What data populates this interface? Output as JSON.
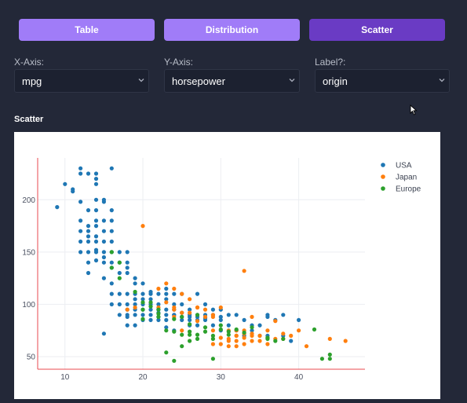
{
  "tabs": [
    {
      "label": "Table"
    },
    {
      "label": "Distribution"
    },
    {
      "label": "Scatter"
    }
  ],
  "controls": {
    "x_axis": {
      "label": "X-Axis:",
      "value": "mpg"
    },
    "y_axis": {
      "label": "Y-Axis:",
      "value": "horsepower"
    },
    "label": {
      "label": "Label?:",
      "value": "origin"
    }
  },
  "section": {
    "title": "Scatter"
  },
  "colors": {
    "USA": "#1f77b4",
    "Japan": "#ff7f0e",
    "Europe": "#2ca02c",
    "accent": "#a07cf8",
    "active_tab": "#6a3bc4"
  },
  "chart_data": {
    "type": "scatter",
    "title": "",
    "xlabel": "",
    "ylabel": "",
    "xlim": [
      6.5,
      48.5
    ],
    "ylim": [
      38,
      240
    ],
    "x_ticks": [
      10,
      20,
      30,
      40
    ],
    "y_ticks": [
      50,
      100,
      150,
      200
    ],
    "grid": true,
    "legend": "top-right",
    "series": [
      {
        "name": "USA",
        "points": [
          [
            9,
            193
          ],
          [
            10,
            215
          ],
          [
            11,
            210
          ],
          [
            11,
            208
          ],
          [
            12,
            225
          ],
          [
            13,
            225
          ],
          [
            14,
            225
          ],
          [
            14,
            220
          ],
          [
            14,
            215
          ],
          [
            16,
            230
          ],
          [
            12,
            198
          ],
          [
            13,
            190
          ],
          [
            13,
            170
          ],
          [
            13,
            165
          ],
          [
            13,
            160
          ],
          [
            13,
            150
          ],
          [
            13,
            140
          ],
          [
            14,
            200
          ],
          [
            14,
            190
          ],
          [
            14,
            180
          ],
          [
            14,
            175
          ],
          [
            14,
            165
          ],
          [
            14,
            160
          ],
          [
            14,
            152
          ],
          [
            14,
            150
          ],
          [
            14,
            142
          ],
          [
            15,
            198
          ],
          [
            15,
            180
          ],
          [
            15,
            170
          ],
          [
            15,
            160
          ],
          [
            15,
            150
          ],
          [
            15,
            145
          ],
          [
            15,
            140
          ],
          [
            16,
            190
          ],
          [
            16,
            180
          ],
          [
            16,
            170
          ],
          [
            16,
            150
          ],
          [
            16,
            140
          ],
          [
            16,
            135
          ],
          [
            16,
            120
          ],
          [
            17,
            150
          ],
          [
            17,
            140
          ],
          [
            17,
            130
          ],
          [
            18,
            150
          ],
          [
            18,
            140
          ],
          [
            18,
            135
          ],
          [
            18,
            130
          ],
          [
            19,
            125
          ],
          [
            19,
            120
          ],
          [
            12,
            180
          ],
          [
            12,
            170
          ],
          [
            12,
            160
          ],
          [
            12,
            150
          ],
          [
            13,
            130
          ],
          [
            15,
            125
          ],
          [
            16,
            110
          ],
          [
            17,
            110
          ],
          [
            18,
            110
          ],
          [
            18,
            100
          ],
          [
            18,
            95
          ],
          [
            19,
            110
          ],
          [
            19,
            100
          ],
          [
            19,
            90
          ],
          [
            20,
            110
          ],
          [
            20,
            100
          ],
          [
            20,
            95
          ],
          [
            20,
            90
          ],
          [
            20,
            85
          ],
          [
            21,
            110
          ],
          [
            21,
            105
          ],
          [
            21,
            95
          ],
          [
            21,
            90
          ],
          [
            21,
            85
          ],
          [
            22,
            100
          ],
          [
            22,
            95
          ],
          [
            22,
            88
          ],
          [
            22,
            85
          ],
          [
            23,
            105
          ],
          [
            23,
            95
          ],
          [
            23,
            90
          ],
          [
            23,
            85
          ],
          [
            24,
            110
          ],
          [
            24,
            100
          ],
          [
            24,
            90
          ],
          [
            25,
            100
          ],
          [
            25,
            88
          ],
          [
            25,
            85
          ],
          [
            26,
            95
          ],
          [
            26,
            90
          ],
          [
            26,
            85
          ],
          [
            27,
            90
          ],
          [
            27,
            88
          ],
          [
            27,
            85
          ],
          [
            28,
            90
          ],
          [
            28,
            85
          ],
          [
            29,
            90
          ],
          [
            29,
            80
          ],
          [
            30,
            85
          ],
          [
            30,
            75
          ],
          [
            31,
            80
          ],
          [
            32,
            90
          ],
          [
            33,
            85
          ],
          [
            34,
            80
          ],
          [
            34,
            75
          ],
          [
            36,
            90
          ],
          [
            36,
            70
          ],
          [
            37,
            85
          ],
          [
            38,
            70
          ],
          [
            39,
            65
          ],
          [
            18,
            80
          ],
          [
            19,
            80
          ],
          [
            22,
            110
          ],
          [
            23,
            110
          ],
          [
            24,
            75
          ],
          [
            26,
            80
          ],
          [
            15,
            72
          ],
          [
            17,
            100
          ],
          [
            18,
            88
          ],
          [
            18,
            90
          ],
          [
            20,
            120
          ],
          [
            21,
            112
          ],
          [
            21,
            100
          ],
          [
            23,
            115
          ],
          [
            24,
            95
          ],
          [
            25,
            110
          ],
          [
            27,
            110
          ],
          [
            28,
            100
          ],
          [
            29,
            95
          ],
          [
            30,
            88
          ],
          [
            32,
            75
          ],
          [
            33,
            70
          ],
          [
            35,
            80
          ],
          [
            38,
            90
          ],
          [
            40,
            85
          ],
          [
            16,
            100
          ],
          [
            17,
            90
          ],
          [
            19,
            95
          ],
          [
            20,
            105
          ],
          [
            22,
            92
          ],
          [
            24,
            90
          ],
          [
            25,
            92
          ],
          [
            26,
            88
          ],
          [
            28,
            87
          ],
          [
            31,
            90
          ],
          [
            12,
            230
          ],
          [
            15,
            200
          ],
          [
            16,
            160
          ],
          [
            13,
            175
          ],
          [
            19,
            105
          ],
          [
            23,
            78
          ],
          [
            27,
            80
          ],
          [
            30,
            95
          ],
          [
            35,
            70
          ],
          [
            36,
            88
          ]
        ]
      },
      {
        "name": "Japan",
        "points": [
          [
            18,
            95
          ],
          [
            19,
            97
          ],
          [
            20,
            175
          ],
          [
            22,
            115
          ],
          [
            23,
            102
          ],
          [
            24,
            97
          ],
          [
            24,
            95
          ],
          [
            25,
            110
          ],
          [
            25,
            92
          ],
          [
            26,
            105
          ],
          [
            27,
            97
          ],
          [
            28,
            95
          ],
          [
            29,
            90
          ],
          [
            30,
            97
          ],
          [
            31,
            67
          ],
          [
            31,
            65
          ],
          [
            32,
            70
          ],
          [
            32,
            75
          ],
          [
            32,
            60
          ],
          [
            33,
            68
          ],
          [
            33,
            75
          ],
          [
            33,
            132
          ],
          [
            34,
            65
          ],
          [
            34,
            70
          ],
          [
            34,
            88
          ],
          [
            35,
            65
          ],
          [
            35,
            70
          ],
          [
            36,
            68
          ],
          [
            36,
            75
          ],
          [
            37,
            67
          ],
          [
            38,
            67
          ],
          [
            38,
            72
          ],
          [
            39,
            70
          ],
          [
            40,
            75
          ],
          [
            41,
            60
          ],
          [
            44,
            67
          ],
          [
            46,
            65
          ],
          [
            24,
            88
          ],
          [
            26,
            92
          ],
          [
            27,
            84
          ],
          [
            29,
            75
          ],
          [
            30,
            68
          ],
          [
            31,
            75
          ],
          [
            32,
            65
          ],
          [
            33,
            72
          ],
          [
            22,
            97
          ],
          [
            23,
            120
          ],
          [
            25,
            75
          ],
          [
            27,
            97
          ],
          [
            28,
            88
          ],
          [
            29,
            88
          ],
          [
            30,
            62
          ],
          [
            31,
            60
          ],
          [
            32,
            70
          ],
          [
            33,
            62
          ],
          [
            34,
            72
          ],
          [
            36,
            62
          ],
          [
            37,
            84
          ],
          [
            29,
            62
          ],
          [
            24,
            115
          ]
        ]
      },
      {
        "name": "Europe",
        "points": [
          [
            16,
            150
          ],
          [
            16,
            135
          ],
          [
            17,
            125
          ],
          [
            19,
            112
          ],
          [
            20,
            102
          ],
          [
            20,
            86
          ],
          [
            21,
            102
          ],
          [
            22,
            88
          ],
          [
            23,
            54
          ],
          [
            23,
            75
          ],
          [
            24,
            74
          ],
          [
            24,
            46
          ],
          [
            24,
            86
          ],
          [
            25,
            88
          ],
          [
            25,
            71
          ],
          [
            26,
            65
          ],
          [
            26,
            74
          ],
          [
            26,
            81
          ],
          [
            27,
            90
          ],
          [
            27,
            71
          ],
          [
            27,
            67
          ],
          [
            28,
            78
          ],
          [
            29,
            70
          ],
          [
            29,
            67
          ],
          [
            30,
            80
          ],
          [
            30,
            76
          ],
          [
            31,
            74
          ],
          [
            32,
            76
          ],
          [
            34,
            78
          ],
          [
            36,
            68
          ],
          [
            36,
            67
          ],
          [
            37,
            65
          ],
          [
            38,
            67
          ],
          [
            42,
            76
          ],
          [
            43,
            48
          ],
          [
            44,
            52
          ],
          [
            44,
            48
          ],
          [
            33,
            73
          ],
          [
            29,
            48
          ],
          [
            25,
            60
          ],
          [
            22,
            95
          ],
          [
            21,
            98
          ],
          [
            20,
            95
          ],
          [
            22,
            91
          ],
          [
            26,
            71
          ],
          [
            28,
            74
          ],
          [
            31,
            71
          ],
          [
            17,
            140
          ]
        ]
      }
    ]
  }
}
